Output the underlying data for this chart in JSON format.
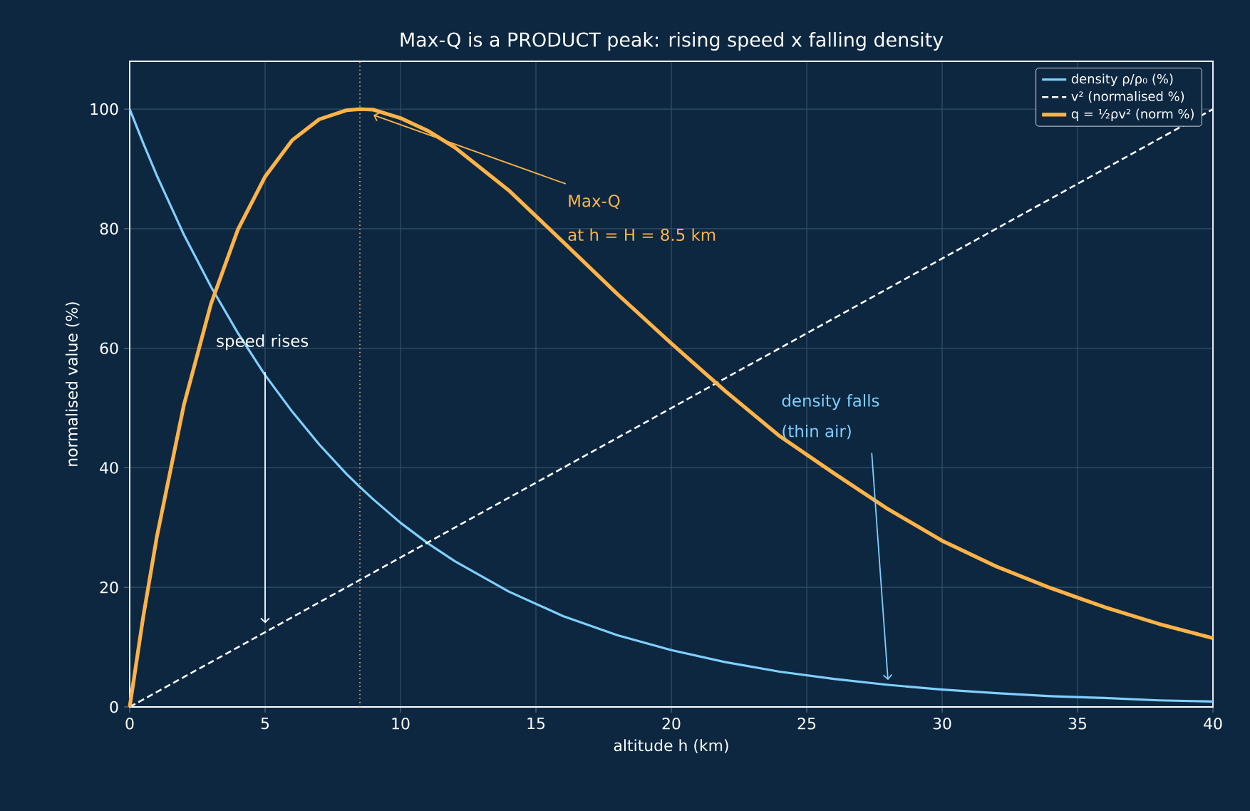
{
  "chart_data": {
    "type": "line",
    "title": "Max-Q is a PRODUCT peak: rising speed x falling density",
    "xlabel": "altitude h (km)",
    "ylabel": "normalised value (%)",
    "xlim": [
      0,
      40
    ],
    "ylim": [
      0,
      108
    ],
    "xticks": [
      0,
      5,
      10,
      15,
      20,
      25,
      30,
      35,
      40
    ],
    "yticks": [
      0,
      20,
      40,
      60,
      80,
      100
    ],
    "grid": true,
    "legend": "top right",
    "marker": "none",
    "series": [
      {
        "name": "density ρ/ρ₀ (%)",
        "color": "#7fd0ff",
        "line_style": "solid",
        "x": [
          0,
          0.5,
          1,
          2,
          3,
          4,
          5,
          6,
          7,
          8,
          8.5,
          9,
          10,
          11,
          12,
          14,
          16,
          18,
          20,
          22,
          24,
          26,
          28,
          30,
          32,
          34,
          36,
          38,
          40
        ],
        "values": [
          100,
          94.3,
          88.9,
          79.0,
          70.3,
          62.5,
          55.5,
          49.4,
          43.9,
          39.0,
          36.8,
          34.7,
          30.8,
          27.4,
          24.4,
          19.3,
          15.2,
          12.0,
          9.5,
          7.5,
          5.9,
          4.7,
          3.7,
          2.9,
          2.3,
          1.8,
          1.5,
          1.1,
          0.9
        ]
      },
      {
        "name": "v² (normalised %)",
        "color": "#ffffff",
        "line_style": "dashed",
        "x": [
          0,
          40
        ],
        "values": [
          0,
          100
        ]
      },
      {
        "name": "q = ½ρv² (norm %)",
        "color": "#ffb347",
        "line_style": "solid",
        "x": [
          0,
          0.5,
          1,
          2,
          3,
          4,
          5,
          6,
          7,
          8,
          8.5,
          9,
          10,
          11,
          12,
          14,
          16,
          18,
          20,
          22,
          24,
          26,
          28,
          30,
          32,
          34,
          36,
          38,
          40
        ],
        "values": [
          0,
          15.1,
          28.4,
          50.5,
          67.4,
          79.9,
          88.7,
          94.8,
          98.3,
          99.8,
          100,
          99.9,
          98.5,
          96.4,
          93.6,
          86.4,
          77.8,
          69.1,
          60.8,
          52.8,
          45.3,
          39.1,
          33.1,
          27.8,
          23.5,
          19.9,
          16.7,
          13.9,
          11.5
        ]
      }
    ],
    "ref_lines": [
      {
        "axis": "x",
        "value": 8.5,
        "color": "#ffb347",
        "line_style": "dotted"
      }
    ],
    "annotations": [
      {
        "text": "Max-Q",
        "x": 9,
        "y": 99
      },
      "at h = H = 8.5 km",
      "speed rises",
      "density falls",
      "(thin air)"
    ]
  }
}
